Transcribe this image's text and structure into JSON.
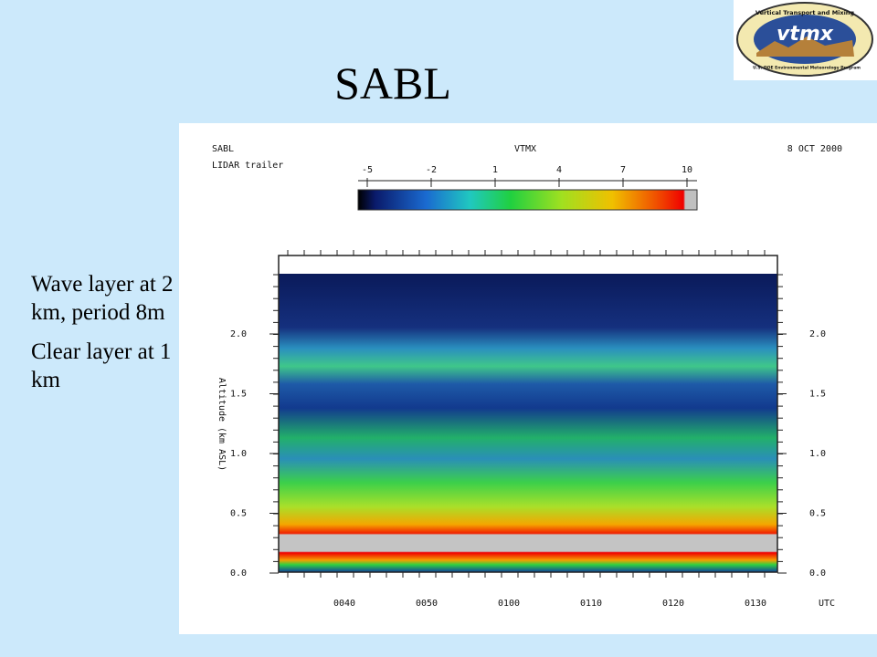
{
  "slide": {
    "title": "SABL",
    "notes": [
      "Wave layer at 2 km, period 8m",
      "Clear layer at 1 km"
    ],
    "logo": {
      "ring_top": "Vertical Transport and Mixing",
      "name": "vtmx",
      "ring_bottom": "U.S. DOE Environmental Meteorology Program"
    },
    "plot": {
      "site": "SABL",
      "instrument": "LIDAR trailer",
      "project": "VTMX",
      "date": "8 OCT 2000",
      "colorbar_ticks": [
        "-5",
        "-2",
        "1",
        "4",
        "7",
        "10"
      ],
      "y_axis_label": "Altitude (km ASL)",
      "y_ticks": [
        "2.0",
        "1.5",
        "1.0",
        "0.5",
        "0.0"
      ],
      "x_ticks": [
        "0040",
        "0050",
        "0100",
        "0110",
        "0120",
        "0130"
      ],
      "x_unit": "UTC"
    }
  }
}
